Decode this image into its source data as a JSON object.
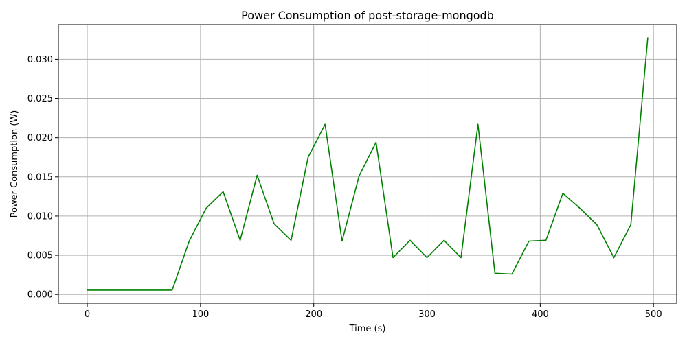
{
  "chart_data": {
    "type": "line",
    "title": "Power Consumption of post-storage-mongodb",
    "xlabel": "Time (s)",
    "ylabel": "Power Consumption (W)",
    "xlim": [
      -25.5,
      520.5
    ],
    "ylim": [
      -0.00112,
      0.03441
    ],
    "xticks": [
      0,
      100,
      200,
      300,
      400,
      500
    ],
    "xtick_labels": [
      "0",
      "100",
      "200",
      "300",
      "400",
      "500"
    ],
    "yticks": [
      0.0,
      0.005,
      0.01,
      0.015,
      0.02,
      0.025,
      0.03
    ],
    "ytick_labels": [
      "0.000",
      "0.005",
      "0.010",
      "0.015",
      "0.020",
      "0.025",
      "0.030"
    ],
    "grid": true,
    "color": "#008000",
    "series": [
      {
        "x": [
          0,
          15,
          30,
          45,
          60,
          75,
          90,
          105,
          120,
          135,
          150,
          165,
          180,
          195,
          210,
          225,
          240,
          255,
          270,
          285,
          300,
          315,
          330,
          345,
          360,
          375,
          390,
          405,
          420,
          435,
          450,
          465,
          480,
          495
        ],
        "values": [
          0.00055,
          0.00055,
          0.00055,
          0.00055,
          0.00055,
          0.00055,
          0.0068,
          0.011,
          0.0131,
          0.0069,
          0.0152,
          0.009,
          0.0069,
          0.0175,
          0.0217,
          0.0068,
          0.0151,
          0.0194,
          0.0047,
          0.0069,
          0.0047,
          0.0069,
          0.0047,
          0.0217,
          0.0027,
          0.0026,
          0.0068,
          0.0069,
          0.0129,
          0.011,
          0.0089,
          0.0047,
          0.0089,
          0.0328
        ]
      }
    ]
  }
}
